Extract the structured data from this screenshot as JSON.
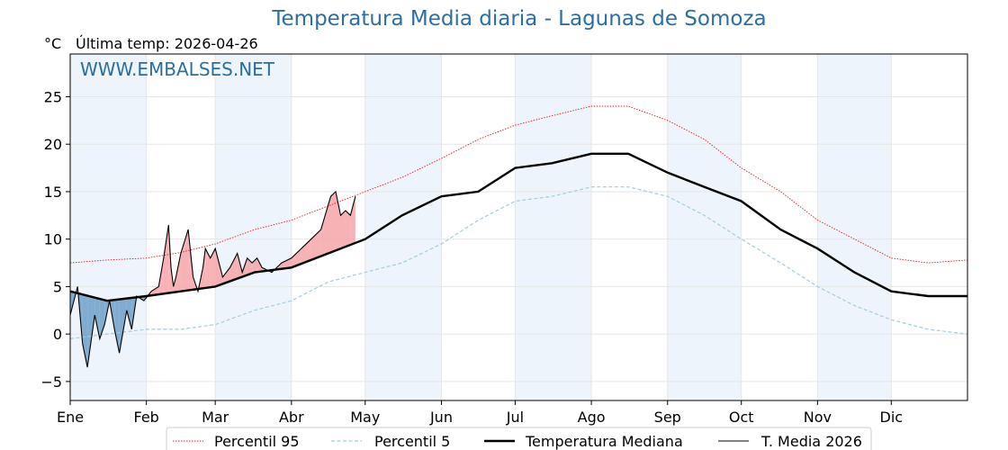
{
  "chart_data": {
    "type": "line",
    "title": "Temperatura Media diaria - Lagunas de Somoza",
    "ylabel": "°C",
    "subtitle": "Última temp: 2026-04-26",
    "watermark": "WWW.EMBALSES.NET",
    "months": [
      "Ene",
      "Feb",
      "Mar",
      "Abr",
      "May",
      "Jun",
      "Jul",
      "Ago",
      "Sep",
      "Oct",
      "Nov",
      "Dic"
    ],
    "month_start_days": [
      0,
      31,
      59,
      90,
      120,
      151,
      181,
      212,
      243,
      273,
      304,
      334
    ],
    "xlim": [
      0,
      365
    ],
    "ylim": [
      -7,
      29.5
    ],
    "yticks": [
      -5,
      0,
      5,
      10,
      15,
      20,
      25
    ],
    "grid": true,
    "legend_position": "bottom-center",
    "colors": {
      "p95": "#e8191e",
      "p5": "#9fcfdc",
      "median": "#000000",
      "current": "#000000",
      "above_fill": "#f4a5a8",
      "below_fill": "#6f9fc7",
      "band": "#eef4fb"
    },
    "series": [
      {
        "name": "Percentil 95",
        "style": "dotted-red",
        "x": [
          0,
          15,
          31,
          45,
          59,
          75,
          90,
          105,
          120,
          135,
          151,
          166,
          181,
          196,
          212,
          227,
          243,
          258,
          273,
          289,
          304,
          319,
          334,
          349,
          365
        ],
        "y": [
          7.5,
          7.8,
          8.0,
          8.6,
          9.5,
          11.0,
          12.0,
          13.5,
          15.0,
          16.5,
          18.5,
          20.5,
          22.0,
          23.0,
          24.0,
          24.0,
          22.5,
          20.5,
          17.5,
          15.0,
          12.0,
          10.0,
          8.0,
          7.5,
          7.8
        ]
      },
      {
        "name": "Percentil 5",
        "style": "dashed-blue",
        "x": [
          0,
          15,
          31,
          45,
          59,
          75,
          90,
          105,
          120,
          135,
          151,
          166,
          181,
          196,
          212,
          227,
          243,
          258,
          273,
          289,
          304,
          319,
          334,
          349,
          365
        ],
        "y": [
          -0.5,
          0.0,
          0.5,
          0.5,
          1.0,
          2.5,
          3.5,
          5.5,
          6.5,
          7.5,
          9.5,
          12.0,
          14.0,
          14.5,
          15.5,
          15.5,
          14.5,
          12.5,
          10.0,
          7.5,
          5.0,
          3.0,
          1.5,
          0.5,
          0.0
        ]
      },
      {
        "name": "Temperatura Mediana",
        "style": "solid-thick",
        "x": [
          0,
          15,
          31,
          45,
          59,
          75,
          90,
          105,
          120,
          135,
          151,
          166,
          181,
          196,
          212,
          227,
          243,
          258,
          273,
          289,
          304,
          319,
          334,
          349,
          365
        ],
        "y": [
          4.5,
          3.5,
          4.0,
          4.5,
          5.0,
          6.5,
          7.0,
          8.5,
          10.0,
          12.5,
          14.5,
          15.0,
          17.5,
          18.0,
          19.0,
          19.0,
          17.0,
          15.5,
          14.0,
          11.0,
          9.0,
          6.5,
          4.5,
          4.0,
          4.0
        ]
      },
      {
        "name": "T. Media 2026",
        "style": "solid-thin",
        "x": [
          0,
          3,
          5,
          7,
          10,
          12,
          14,
          16,
          18,
          20,
          23,
          25,
          27,
          30,
          33,
          36,
          38,
          40,
          41,
          42,
          43,
          45,
          48,
          50,
          52,
          54,
          55,
          57,
          59,
          62,
          65,
          68,
          70,
          72,
          74,
          76,
          78,
          82,
          86,
          90,
          94,
          98,
          102,
          106,
          108,
          110,
          112,
          114,
          116
        ],
        "y": [
          2.0,
          5.0,
          -1.0,
          -3.5,
          2.0,
          -0.5,
          1.0,
          3.5,
          0.5,
          -2.0,
          2.5,
          0.5,
          4.0,
          3.5,
          4.5,
          5.0,
          8.0,
          11.5,
          7.0,
          5.0,
          6.0,
          8.5,
          11.0,
          6.0,
          4.5,
          7.0,
          9.0,
          8.0,
          9.0,
          6.0,
          7.0,
          8.5,
          6.5,
          8.0,
          7.5,
          8.0,
          7.0,
          6.5,
          7.5,
          8.0,
          9.0,
          10.0,
          11.0,
          14.5,
          15.0,
          12.5,
          13.0,
          12.5,
          14.5
        ]
      }
    ]
  }
}
